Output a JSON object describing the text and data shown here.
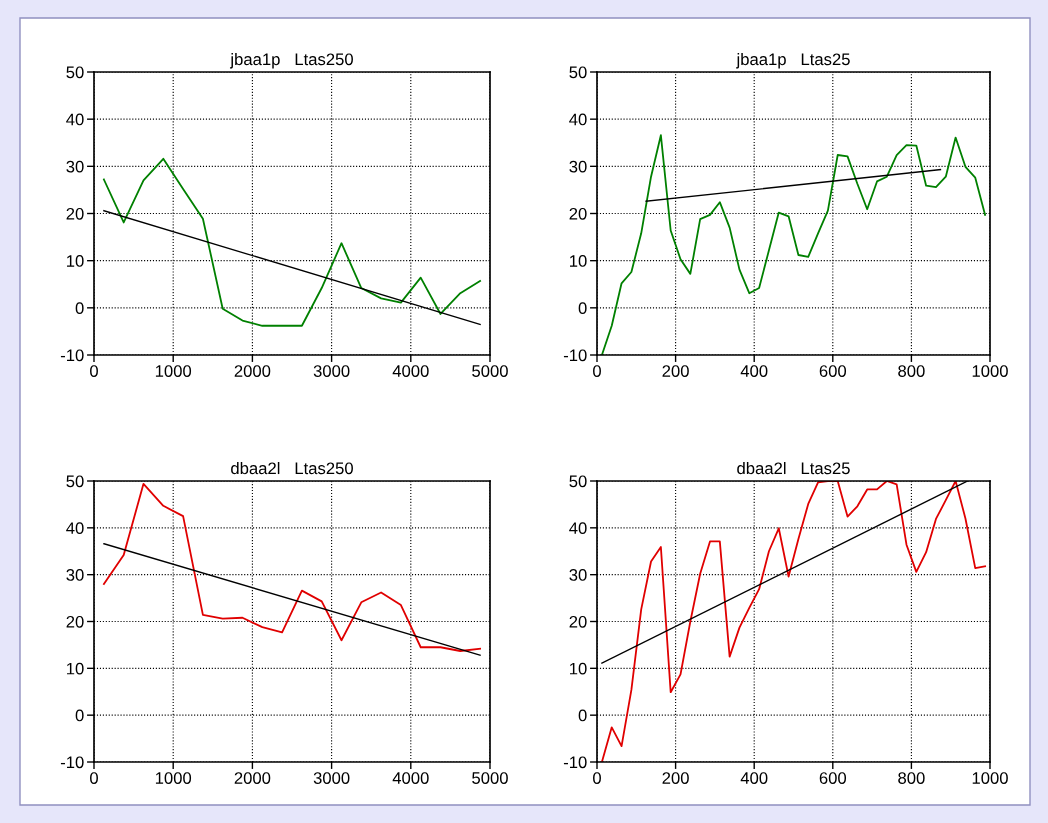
{
  "chart_data": [
    {
      "type": "line",
      "title": "jbaa1p   Ltas250",
      "xlim": [
        0,
        5000
      ],
      "xticks": [
        0,
        1000,
        2000,
        3000,
        4000,
        5000
      ],
      "ylim": [
        -10,
        50
      ],
      "yticks": [
        -10,
        0,
        10,
        20,
        30,
        40,
        50
      ],
      "grid": true,
      "series": [
        {
          "color": "#008000",
          "x": [
            125,
            375,
            625,
            875,
            1125,
            1375,
            1625,
            1875,
            2125,
            2375,
            2625,
            2875,
            3125,
            3375,
            3625,
            3875,
            4125,
            4375,
            4625,
            4875
          ],
          "values": [
            27.2,
            18.1,
            27.0,
            31.6,
            25.2,
            18.9,
            -0.2,
            -2.7,
            -3.8,
            -3.8,
            -3.8,
            4.2,
            13.7,
            4.2,
            2.0,
            1.1,
            6.4,
            -1.3,
            3.1,
            5.7
          ]
        },
        {
          "color": "#000000",
          "x": [
            125,
            4875
          ],
          "values": [
            20.6,
            -3.5
          ]
        }
      ]
    },
    {
      "type": "line",
      "title": "jbaa1p   Ltas25",
      "xlim": [
        0,
        1000
      ],
      "xticks": [
        0,
        200,
        400,
        600,
        800,
        1000
      ],
      "ylim": [
        -10,
        50
      ],
      "yticks": [
        -10,
        0,
        10,
        20,
        30,
        40,
        50
      ],
      "grid": true,
      "series": [
        {
          "color": "#008000",
          "x": [
            12.5,
            37.5,
            62.5,
            87.5,
            112.5,
            137.5,
            162.5,
            187.5,
            212.5,
            237.5,
            262.5,
            287.5,
            312.5,
            337.5,
            362.5,
            387.5,
            412.5,
            437.5,
            462.5,
            487.5,
            512.5,
            537.5,
            562.5,
            587.5,
            612.5,
            637.5,
            662.5,
            687.5,
            712.5,
            737.5,
            762.5,
            787.5,
            812.5,
            837.5,
            862.5,
            887.5,
            912.5,
            937.5,
            962.5,
            987.5
          ],
          "values": [
            -10,
            -3.8,
            5.2,
            7.6,
            15.8,
            27.8,
            36.6,
            16.4,
            10.3,
            7.2,
            18.8,
            19.7,
            22.4,
            17.0,
            8.1,
            3.1,
            4.2,
            12.2,
            20.2,
            19.4,
            11.2,
            10.8,
            15.8,
            20.6,
            32.4,
            32.1,
            26.3,
            20.9,
            26.8,
            27.8,
            32.4,
            34.5,
            34.4,
            25.9,
            25.6,
            27.8,
            36.1,
            29.9,
            27.6,
            19.7
          ]
        },
        {
          "color": "#000000",
          "x": [
            125,
            874
          ],
          "values": [
            22.6,
            29.3
          ]
        }
      ]
    },
    {
      "type": "line",
      "title": "dbaa2l   Ltas250",
      "xlim": [
        0,
        5000
      ],
      "xticks": [
        0,
        1000,
        2000,
        3000,
        4000,
        5000
      ],
      "ylim": [
        -10,
        50
      ],
      "yticks": [
        -10,
        0,
        10,
        20,
        30,
        40,
        50
      ],
      "grid": true,
      "series": [
        {
          "color": "#e00000",
          "x": [
            125,
            375,
            625,
            875,
            1125,
            1375,
            1625,
            1875,
            2125,
            2375,
            2625,
            2875,
            3125,
            3375,
            3625,
            3875,
            4125,
            4375,
            4625,
            4875
          ],
          "values": [
            28.0,
            34.2,
            49.4,
            44.7,
            42.5,
            21.4,
            20.6,
            20.8,
            18.8,
            17.7,
            26.6,
            24.3,
            16.0,
            24.1,
            26.2,
            23.5,
            14.5,
            14.5,
            13.7,
            14.2
          ]
        },
        {
          "color": "#000000",
          "x": [
            125,
            4875
          ],
          "values": [
            36.6,
            12.8
          ]
        }
      ]
    },
    {
      "type": "line",
      "title": "dbaa2l   Ltas25",
      "xlim": [
        0,
        1000
      ],
      "xticks": [
        0,
        200,
        400,
        600,
        800,
        1000
      ],
      "ylim": [
        -10,
        50
      ],
      "yticks": [
        -10,
        0,
        10,
        20,
        30,
        40,
        50
      ],
      "grid": true,
      "series": [
        {
          "color": "#e00000",
          "x": [
            12.5,
            37.5,
            62.5,
            87.5,
            112.5,
            137.5,
            162.5,
            187.5,
            212.5,
            237.5,
            262.5,
            287.5,
            312.5,
            337.5,
            362.5,
            387.5,
            412.5,
            437.5,
            462.5,
            487.5,
            512.5,
            537.5,
            562.5,
            587.5,
            612.5,
            637.5,
            662.5,
            687.5,
            712.5,
            737.5,
            762.5,
            787.5,
            812.5,
            837.5,
            862.5,
            887.5,
            912.5,
            937.5,
            962.5,
            987.5
          ],
          "values": [
            -10,
            -2.6,
            -6.6,
            5.4,
            22.6,
            32.8,
            35.9,
            4.9,
            8.7,
            20.0,
            30.2,
            37.1,
            37.1,
            12.5,
            18.7,
            22.9,
            26.9,
            35.0,
            39.9,
            29.6,
            37.6,
            45.1,
            49.7,
            50,
            50,
            42.4,
            44.6,
            48.2,
            48.2,
            50,
            49.3,
            36.4,
            30.6,
            34.8,
            41.9,
            45.9,
            50,
            42.0,
            31.4,
            31.8
          ]
        },
        {
          "color": "#000000",
          "x": [
            12.5,
            943
          ],
          "values": [
            11.1,
            50
          ]
        }
      ]
    }
  ]
}
